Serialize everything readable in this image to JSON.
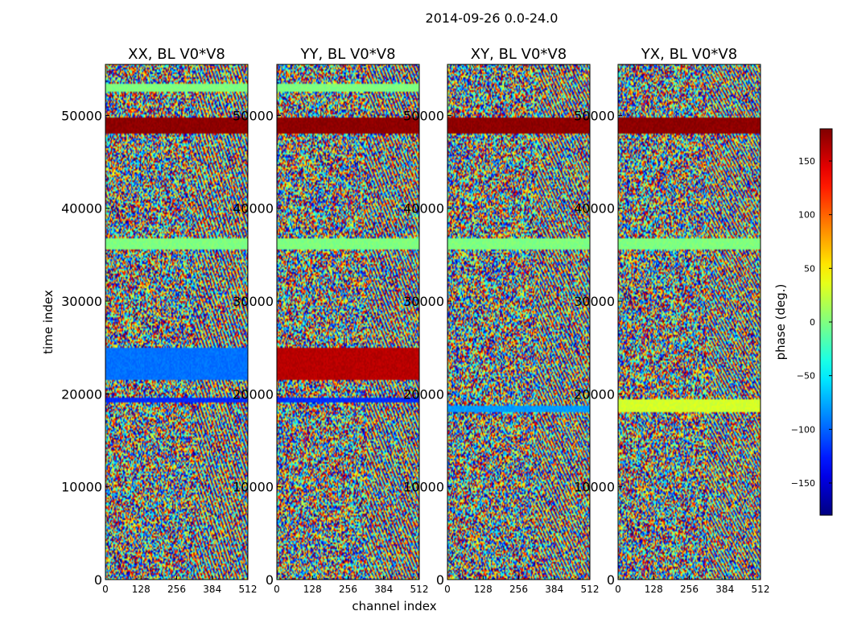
{
  "chart_data": {
    "type": "heatmap",
    "title": "2014-09-26 0.0-24.0",
    "xlabel": "channel index",
    "ylabel": "time index",
    "xlim": [
      0,
      512
    ],
    "ylim": [
      0,
      55500
    ],
    "x_ticks": [
      0,
      128,
      256,
      384,
      512
    ],
    "y_ticks": [
      0,
      10000,
      20000,
      30000,
      40000,
      50000
    ],
    "colorbar": {
      "label": "phase (deg.)",
      "range": [
        -180,
        180
      ],
      "ticks": [
        -150,
        -100,
        -50,
        0,
        50,
        100,
        150
      ],
      "colormap": "jet",
      "tick_labels": [
        "−150",
        "−100",
        "−50",
        "0",
        "50",
        "100",
        "150"
      ]
    },
    "panels": [
      {
        "name": "XX",
        "title": "XX, BL V0*V8"
      },
      {
        "name": "YY",
        "title": "YY, BL V0*V8"
      },
      {
        "name": "XY",
        "title": "XY, BL V0*V8"
      },
      {
        "name": "YX",
        "title": "YX, BL V0*V8"
      }
    ],
    "features": [
      {
        "type": "band",
        "t_start": 48000,
        "t_end": 49800,
        "phase": 175,
        "panels": [
          "XX",
          "YY",
          "XY",
          "YX"
        ]
      },
      {
        "type": "band",
        "t_start": 21500,
        "t_end": 25000,
        "phase": -95,
        "panels": [
          "XX"
        ]
      },
      {
        "type": "band",
        "t_start": 21500,
        "t_end": 25000,
        "phase": 160,
        "panels": [
          "YY"
        ]
      },
      {
        "type": "band",
        "t_start": 19000,
        "t_end": 19600,
        "phase": -120,
        "panels": [
          "XX",
          "YY"
        ]
      },
      {
        "type": "band",
        "t_start": 18000,
        "t_end": 18700,
        "phase": -80,
        "panels": [
          "XY"
        ]
      },
      {
        "type": "band",
        "t_start": 18000,
        "t_end": 19500,
        "phase": 30,
        "panels": [
          "YX"
        ]
      },
      {
        "type": "band",
        "t_start": 35500,
        "t_end": 36800,
        "phase": 0,
        "panels": [
          "XX",
          "YY",
          "XY",
          "YX"
        ]
      },
      {
        "type": "band",
        "t_start": 52500,
        "t_end": 53500,
        "phase": 0,
        "panels": [
          "XX",
          "YY"
        ]
      }
    ]
  }
}
